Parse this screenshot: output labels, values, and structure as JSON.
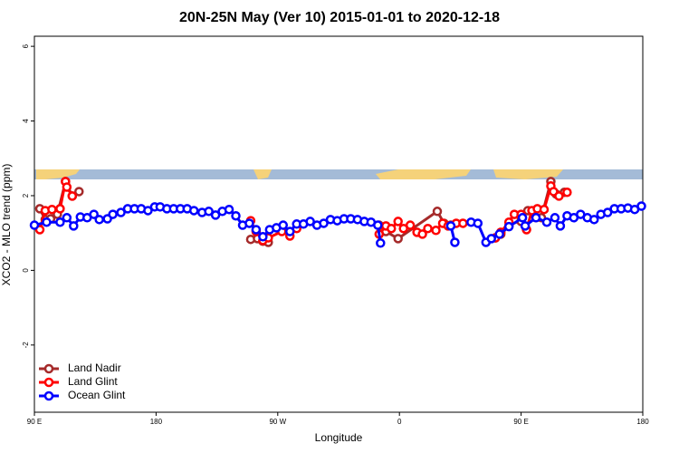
{
  "chart_data": {
    "type": "line",
    "title": "20N-25N May (Ver 10)   2015-01-01 to 2020-12-18",
    "x_label": "Longitude",
    "y_label": "XCO2 - MLO trend (ppm)",
    "xlim": [
      90,
      540
    ],
    "ylim": [
      -3.8,
      6.27
    ],
    "xticks": [
      {
        "value": 90,
        "label": "90 E"
      },
      {
        "value": 180,
        "label": "180"
      },
      {
        "value": 270,
        "label": "90 W"
      },
      {
        "value": 360,
        "label": "0"
      },
      {
        "value": 450,
        "label": "90 E"
      },
      {
        "value": 540,
        "label": "180"
      }
    ],
    "yticks": [
      -2,
      0,
      2,
      4,
      6
    ],
    "legend": "bottomleft",
    "series": [
      {
        "name": "Land Nadir",
        "color": "#a52a2a",
        "x": [
          94,
          98,
          102,
          107,
          113,
          118,
          123,
          null,
          250,
          255,
          259,
          263,
          null,
          345,
          350,
          359,
          388,
          393,
          398,
          null,
          431,
          435,
          441,
          445,
          450,
          455,
          461,
          465,
          472,
          476,
          482
        ],
        "values": [
          1.65,
          1.36,
          1.38,
          1.5,
          2.38,
          1.99,
          2.11,
          null,
          0.83,
          0.85,
          0.78,
          0.75,
          null,
          1.21,
          1.04,
          0.85,
          1.58,
          1.26,
          1.21,
          null,
          0.87,
          0.97,
          1.19,
          1.36,
          1.31,
          1.6,
          1.41,
          1.41,
          2.38,
          2.04,
          2.09
        ]
      },
      {
        "name": "Land Glint",
        "color": "#ff0000",
        "x": [
          94,
          98,
          103,
          109,
          113,
          114,
          118,
          null,
          250,
          254,
          259,
          263,
          273,
          279,
          284,
          null,
          345,
          350,
          354,
          359,
          363,
          368,
          373,
          377,
          381,
          387,
          392,
          396,
          402,
          407,
          null,
          431,
          435,
          441,
          445,
          450,
          454,
          458,
          462,
          467,
          472,
          474,
          478,
          484
        ],
        "values": [
          1.09,
          1.6,
          1.63,
          1.65,
          2.38,
          2.23,
          1.99,
          null,
          1.33,
          1.04,
          0.8,
          0.87,
          1.04,
          0.92,
          1.12,
          null,
          0.97,
          1.19,
          1.12,
          1.31,
          1.12,
          1.21,
          1.02,
          0.97,
          1.12,
          1.07,
          1.26,
          1.19,
          1.26,
          1.26,
          null,
          0.87,
          1.02,
          1.29,
          1.5,
          1.5,
          1.09,
          1.6,
          1.65,
          1.63,
          2.26,
          2.11,
          1.99,
          2.09
        ]
      },
      {
        "name": "Ocean Glint",
        "color": "#0000ff",
        "x": [
          90,
          99,
          109,
          114,
          119,
          124,
          129,
          134,
          138,
          144,
          148,
          154,
          159,
          164,
          169,
          174,
          179,
          183,
          188,
          193,
          198,
          203,
          208,
          214,
          219,
          224,
          229,
          234,
          239,
          244,
          249,
          254,
          259,
          264,
          269,
          274,
          279,
          284,
          289,
          294,
          299,
          304,
          309,
          314,
          319,
          324,
          329,
          334,
          339,
          344,
          346,
          null,
          398,
          401,
          null,
          413,
          418,
          424,
          428,
          434,
          441,
          451,
          453,
          461,
          469,
          475,
          479,
          484,
          489,
          494,
          499,
          504,
          509,
          514,
          519,
          524,
          529,
          534,
          539
        ],
        "values": [
          1.21,
          1.29,
          1.29,
          1.41,
          1.19,
          1.43,
          1.41,
          1.5,
          1.36,
          1.38,
          1.5,
          1.55,
          1.65,
          1.65,
          1.65,
          1.6,
          1.7,
          1.7,
          1.65,
          1.65,
          1.65,
          1.65,
          1.6,
          1.55,
          1.58,
          1.48,
          1.58,
          1.63,
          1.46,
          1.21,
          1.26,
          1.09,
          0.9,
          1.09,
          1.14,
          1.21,
          1.04,
          1.24,
          1.24,
          1.31,
          1.21,
          1.26,
          1.36,
          1.33,
          1.38,
          1.38,
          1.36,
          1.31,
          1.29,
          1.21,
          0.73,
          null,
          1.19,
          0.75,
          null,
          1.29,
          1.26,
          0.75,
          0.85,
          0.97,
          1.17,
          1.41,
          1.19,
          1.41,
          1.29,
          1.41,
          1.19,
          1.46,
          1.41,
          1.5,
          1.41,
          1.36,
          1.5,
          1.55,
          1.65,
          1.65,
          1.67,
          1.63,
          1.72
        ]
      }
    ]
  }
}
